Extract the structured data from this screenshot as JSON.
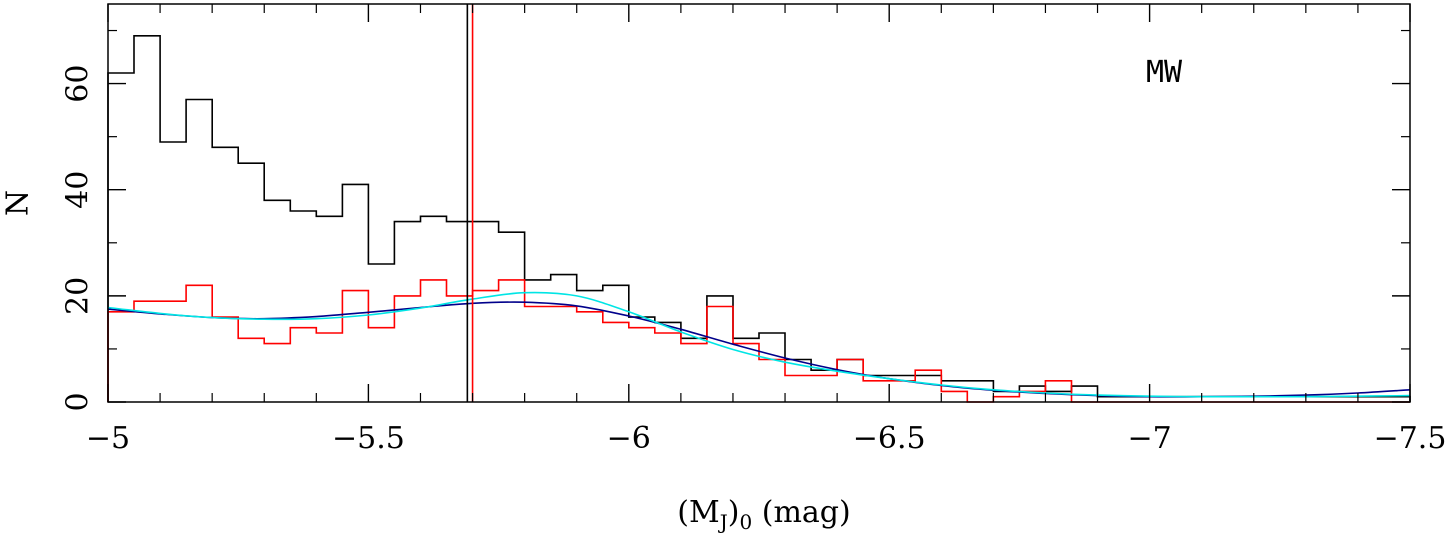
{
  "chart_data": {
    "type": "histogram",
    "annotation": "MW",
    "ylabel": "N",
    "xlabel": {
      "parts": [
        "(M",
        "J",
        ")",
        "0",
        " (mag)"
      ]
    },
    "xlim": [
      -5,
      -7.5
    ],
    "ylim": [
      0,
      75
    ],
    "x_ticks": [
      -5,
      -5.5,
      -6,
      -6.5,
      -7,
      -7.5
    ],
    "x_tick_labels": [
      "−5",
      "−5.5",
      "−6",
      "−6.5",
      "−7",
      "−7.5"
    ],
    "y_ticks": [
      0,
      20,
      40,
      60
    ],
    "y_tick_labels": [
      "0",
      "20",
      "40",
      "60"
    ],
    "bin_edges": [
      -5.0,
      -5.05,
      -5.1,
      -5.15,
      -5.2,
      -5.25,
      -5.3,
      -5.35,
      -5.4,
      -5.45,
      -5.5,
      -5.55,
      -5.6,
      -5.65,
      -5.7,
      -5.75,
      -5.8,
      -5.85,
      -5.9,
      -5.95,
      -6.0,
      -6.05,
      -6.1,
      -6.15,
      -6.2,
      -6.25,
      -6.3,
      -6.35,
      -6.4,
      -6.45,
      -6.5,
      -6.55,
      -6.6,
      -6.65,
      -6.7,
      -6.75,
      -6.8,
      -6.85,
      -6.9,
      -6.95,
      -7.0,
      -7.05,
      -7.1,
      -7.15,
      -7.2,
      -7.25,
      -7.3,
      -7.35,
      -7.4,
      -7.45,
      -7.5
    ],
    "series": [
      {
        "color": "#000000",
        "values": [
          62,
          69,
          49,
          57,
          48,
          45,
          38,
          36,
          35,
          41,
          26,
          34,
          35,
          34,
          34,
          32,
          23,
          24,
          21,
          22,
          16,
          15,
          12,
          20,
          12,
          13,
          8,
          6,
          8,
          5,
          5,
          5,
          4,
          4,
          2,
          3,
          2,
          3,
          1,
          1,
          1,
          1,
          1,
          1,
          1,
          1,
          1,
          1,
          1,
          1
        ]
      },
      {
        "color": "#ff0000",
        "values": [
          17,
          19,
          19,
          22,
          16,
          12,
          11,
          14,
          13,
          21,
          14,
          20,
          23,
          20,
          21,
          23,
          18,
          18,
          17,
          15,
          14,
          13,
          11,
          18,
          11,
          8,
          5,
          5,
          8,
          4,
          4,
          6,
          2,
          0,
          1,
          2,
          4,
          0,
          0,
          0,
          0,
          0,
          0,
          0,
          0,
          0,
          0,
          0,
          0,
          0
        ]
      }
    ],
    "fit_curves": [
      {
        "color": "#00008b",
        "x": [
          -5.0,
          -5.1,
          -5.2,
          -5.3,
          -5.4,
          -5.5,
          -5.6,
          -5.7,
          -5.8,
          -5.9,
          -6.0,
          -6.1,
          -6.2,
          -6.3,
          -6.4,
          -6.5,
          -6.6,
          -6.7,
          -6.8,
          -6.9,
          -7.0,
          -7.1,
          -7.2,
          -7.3,
          -7.4,
          -7.5
        ],
        "y": [
          17.5,
          16.6,
          15.9,
          15.7,
          16.1,
          16.9,
          17.8,
          18.6,
          18.8,
          18.1,
          16.2,
          13.7,
          10.9,
          8.3,
          6.1,
          4.4,
          3.1,
          2.2,
          1.6,
          1.2,
          1.0,
          1.0,
          1.1,
          1.3,
          1.7,
          2.3
        ]
      },
      {
        "color": "#00e5e5",
        "x": [
          -5.0,
          -5.1,
          -5.2,
          -5.3,
          -5.4,
          -5.5,
          -5.6,
          -5.7,
          -5.8,
          -5.9,
          -6.0,
          -6.1,
          -6.2,
          -6.3,
          -6.4,
          -6.5,
          -6.6,
          -6.7,
          -6.8,
          -6.9,
          -7.0,
          -7.1,
          -7.2,
          -7.3,
          -7.4,
          -7.5
        ],
        "y": [
          17.8,
          16.7,
          15.9,
          15.6,
          15.7,
          16.4,
          17.7,
          19.4,
          20.6,
          20.0,
          17.0,
          13.2,
          9.9,
          7.5,
          5.8,
          4.4,
          3.2,
          2.3,
          1.7,
          1.3,
          1.1,
          1.0,
          1.0,
          1.0,
          1.1,
          1.2
        ]
      }
    ],
    "vertical_lines": [
      {
        "x": -5.69,
        "color": "#000000"
      },
      {
        "x": -5.7,
        "color": "#ff0000"
      }
    ],
    "grid": false
  }
}
